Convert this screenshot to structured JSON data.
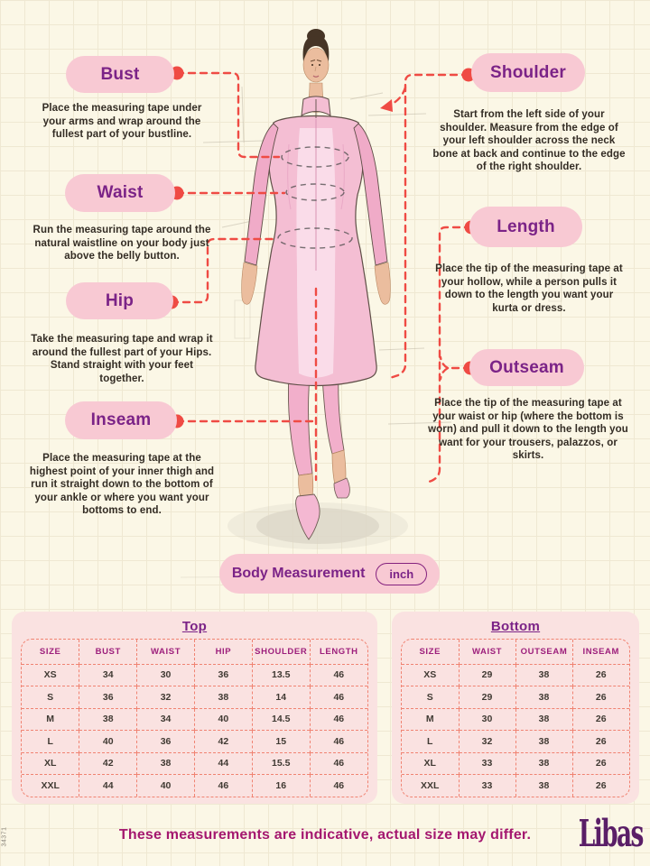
{
  "page": {
    "side_code": "34371",
    "footer_note": "These measurements are indicative, actual size may differ.",
    "brand": "Libas"
  },
  "colors": {
    "pill_bg": "#F8C9D3",
    "label_text": "#7B2387",
    "connector_red": "#EF4B44",
    "body_text": "#332C24",
    "panel_bg": "#FAE2E1",
    "table_border": "#F08372",
    "table_header_text": "#9D1F7C",
    "cell_text": "#403A33",
    "footer_text": "#A4176F",
    "brand_color": "#5A1E67",
    "page_bg": "#FBF7E6"
  },
  "annotations": {
    "left": [
      {
        "label": "Bust",
        "description": "Place the measuring tape under your arms and wrap around the fullest part of your bustline."
      },
      {
        "label": "Waist",
        "description": "Run the measuring tape around the natural waistline on your body just above the belly button."
      },
      {
        "label": "Hip",
        "description": "Take the measuring tape and wrap it around the fullest part of your Hips. Stand straight with your feet together."
      },
      {
        "label": "Inseam",
        "description": "Place the measuring tape at the highest point of your inner thigh and run it straight down to the bottom of your ankle or where you want your bottoms to end."
      }
    ],
    "right": [
      {
        "label": "Shoulder",
        "description": "Start from the left side of your shoulder. Measure from the edge of your left shoulder across the neck bone at back and continue to the edge of the right shoulder."
      },
      {
        "label": "Length",
        "description": "Place the tip of the measuring tape at your hollow, while a person pulls it down to the length you want your kurta or dress."
      },
      {
        "label": "Outseam",
        "description": "Place the tip of the measuring tape at your waist or hip (where the bottom is worn) and pull it down to the length you want for your trousers, palazzos, or skirts."
      }
    ]
  },
  "measure_bar": {
    "label": "Body Measurement",
    "unit": "inch"
  },
  "tables": [
    {
      "title": "Top",
      "headers": [
        "SIZE",
        "BUST",
        "WAIST",
        "HIP",
        "SHOULDER",
        "LENGTH"
      ],
      "rows": [
        [
          "XS",
          "34",
          "30",
          "36",
          "13.5",
          "46"
        ],
        [
          "S",
          "36",
          "32",
          "38",
          "14",
          "46"
        ],
        [
          "M",
          "38",
          "34",
          "40",
          "14.5",
          "46"
        ],
        [
          "L",
          "40",
          "36",
          "42",
          "15",
          "46"
        ],
        [
          "XL",
          "42",
          "38",
          "44",
          "15.5",
          "46"
        ],
        [
          "XXL",
          "44",
          "40",
          "46",
          "16",
          "46"
        ]
      ]
    },
    {
      "title": "Bottom",
      "headers": [
        "SIZE",
        "WAIST",
        "OUTSEAM",
        "INSEAM"
      ],
      "rows": [
        [
          "XS",
          "29",
          "38",
          "26"
        ],
        [
          "S",
          "29",
          "38",
          "26"
        ],
        [
          "M",
          "30",
          "38",
          "26"
        ],
        [
          "L",
          "32",
          "38",
          "26"
        ],
        [
          "XL",
          "33",
          "38",
          "26"
        ],
        [
          "XXL",
          "33",
          "38",
          "26"
        ]
      ]
    }
  ]
}
